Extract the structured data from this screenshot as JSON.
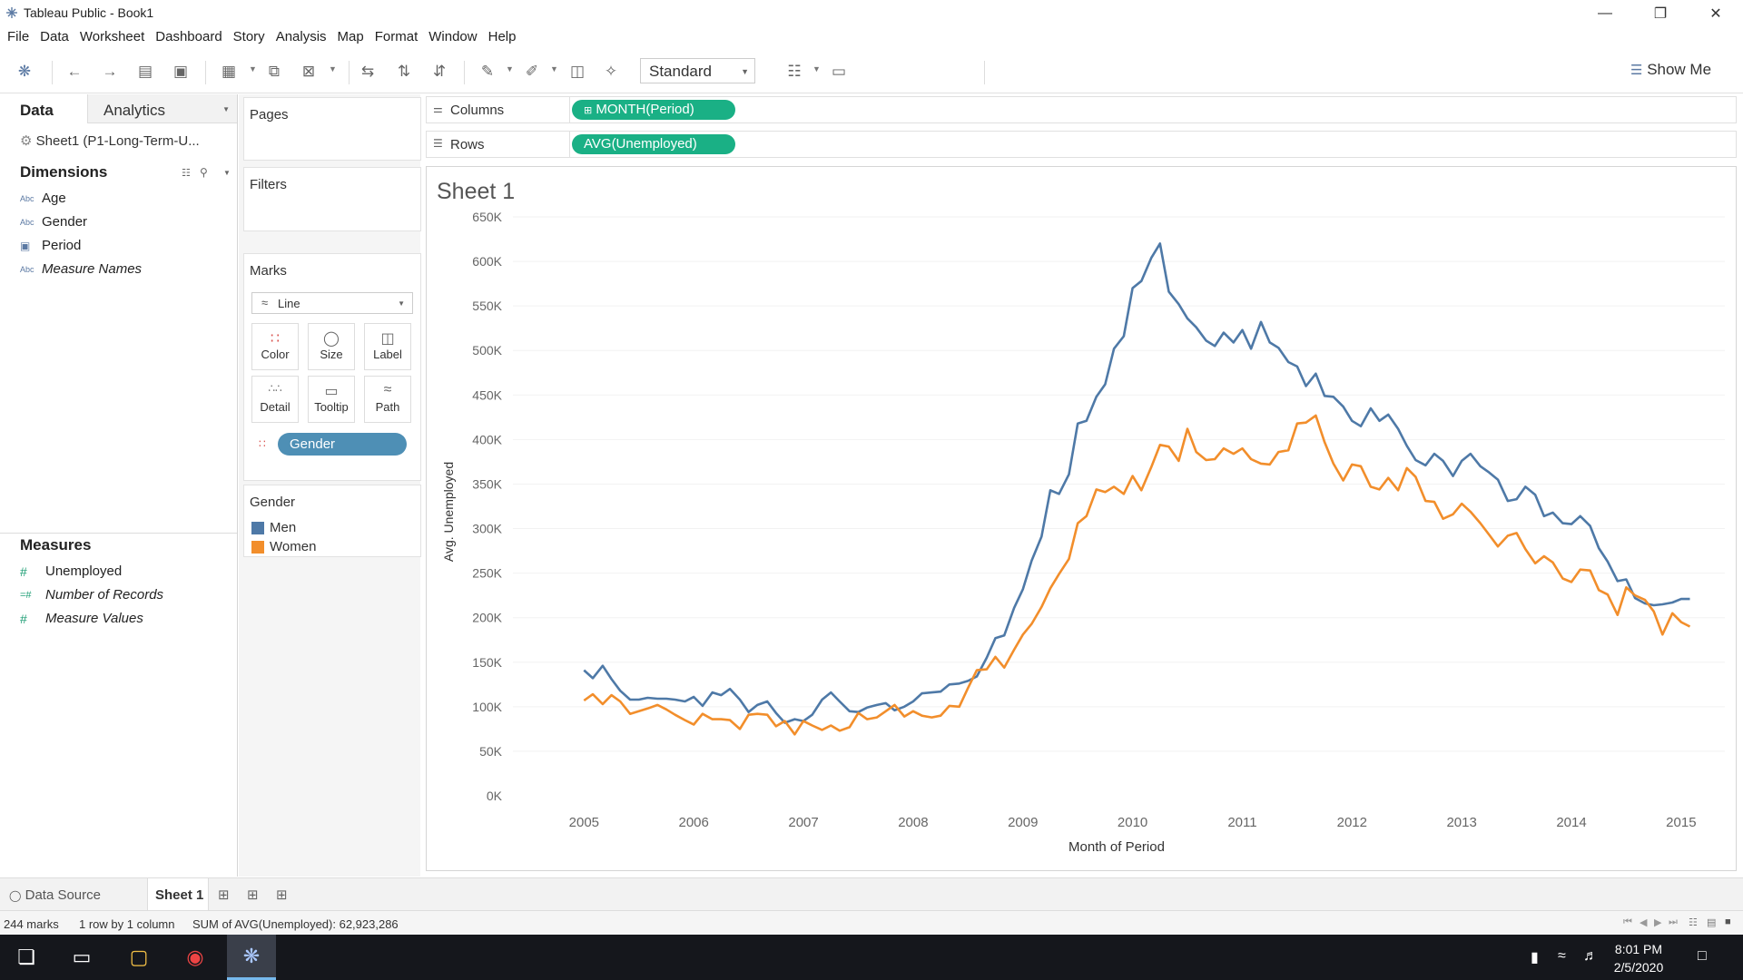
{
  "window": {
    "title": "Tableau Public - Book1"
  },
  "menu": [
    "File",
    "Data",
    "Worksheet",
    "Dashboard",
    "Story",
    "Analysis",
    "Map",
    "Format",
    "Window",
    "Help"
  ],
  "toolbar": {
    "fit_select": "Standard",
    "show_me": "Show Me"
  },
  "data_pane": {
    "tab_data": "Data",
    "tab_analytics": "Analytics",
    "datasource": "Sheet1 (P1-Long-Term-U...",
    "dimensions_title": "Dimensions",
    "dimensions": [
      {
        "icon": "Abc",
        "name": "Age"
      },
      {
        "icon": "Abc",
        "name": "Gender"
      },
      {
        "icon": "▣",
        "name": "Period"
      },
      {
        "icon": "Abc",
        "name": "Measure Names"
      }
    ],
    "measures_title": "Measures",
    "measures": [
      {
        "icon": "#",
        "name": "Unemployed"
      },
      {
        "icon": "=#",
        "name": "Number of Records"
      },
      {
        "icon": "#",
        "name": "Measure Values"
      }
    ]
  },
  "cards": {
    "pages": "Pages",
    "filters": "Filters",
    "marks": "Marks",
    "mark_type": "Line",
    "mark_buttons": [
      "Color",
      "Size",
      "Label",
      "Detail",
      "Tooltip",
      "Path"
    ],
    "gender_pill": "Gender",
    "legend_title": "Gender",
    "legend": [
      {
        "name": "Men",
        "color": "#4e79a7"
      },
      {
        "name": "Women",
        "color": "#f28e2b"
      }
    ]
  },
  "shelves": {
    "columns_label": "Columns",
    "columns_pill": "MONTH(Period)",
    "rows_label": "Rows",
    "rows_pill": "AVG(Unemployed)"
  },
  "sheet_title": "Sheet 1",
  "chart_data": {
    "type": "line",
    "xlabel": "Month of Period",
    "ylabel": "Avg. Unemployed",
    "ylim": [
      0,
      650000
    ],
    "yticks": [
      0,
      50000,
      100000,
      150000,
      200000,
      250000,
      300000,
      350000,
      400000,
      450000,
      500000,
      550000,
      600000,
      650000
    ],
    "ytick_labels": [
      "0K",
      "50K",
      "100K",
      "150K",
      "200K",
      "250K",
      "300K",
      "350K",
      "400K",
      "450K",
      "500K",
      "550K",
      "600K",
      "650K"
    ],
    "xticks": [
      2005,
      2006,
      2007,
      2008,
      2009,
      2010,
      2011,
      2012,
      2013,
      2014,
      2015
    ],
    "xlim": [
      2004.6,
      2015.15
    ],
    "series": [
      {
        "name": "Men",
        "color": "#4e79a7",
        "points": [
          [
            2005.0,
            141000
          ],
          [
            2005.08,
            132000
          ],
          [
            2005.17,
            146000
          ],
          [
            2005.25,
            131000
          ],
          [
            2005.33,
            118000
          ],
          [
            2005.42,
            108000
          ],
          [
            2005.5,
            108000
          ],
          [
            2005.58,
            110000
          ],
          [
            2005.67,
            109000
          ],
          [
            2005.75,
            109000
          ],
          [
            2005.83,
            108000
          ],
          [
            2005.92,
            106000
          ],
          [
            2006.0,
            111000
          ],
          [
            2006.08,
            101000
          ],
          [
            2006.17,
            116000
          ],
          [
            2006.25,
            113000
          ],
          [
            2006.33,
            120000
          ],
          [
            2006.42,
            108000
          ],
          [
            2006.5,
            94000
          ],
          [
            2006.58,
            102000
          ],
          [
            2006.67,
            106000
          ],
          [
            2006.75,
            93000
          ],
          [
            2006.83,
            82000
          ],
          [
            2006.92,
            86000
          ],
          [
            2007.0,
            84000
          ],
          [
            2007.08,
            91000
          ],
          [
            2007.17,
            108000
          ],
          [
            2007.25,
            116000
          ],
          [
            2007.33,
            106000
          ],
          [
            2007.42,
            95000
          ],
          [
            2007.5,
            94000
          ],
          [
            2007.58,
            99000
          ],
          [
            2007.67,
            102000
          ],
          [
            2007.75,
            104000
          ],
          [
            2007.83,
            96000
          ],
          [
            2007.92,
            100000
          ],
          [
            2008.0,
            106000
          ],
          [
            2008.08,
            115000
          ],
          [
            2008.17,
            116000
          ],
          [
            2008.25,
            117000
          ],
          [
            2008.33,
            125000
          ],
          [
            2008.42,
            126000
          ],
          [
            2008.5,
            129000
          ],
          [
            2008.58,
            134000
          ],
          [
            2008.67,
            155000
          ],
          [
            2008.75,
            177000
          ],
          [
            2008.83,
            180000
          ],
          [
            2008.92,
            211000
          ],
          [
            2009.0,
            232000
          ],
          [
            2009.08,
            264000
          ],
          [
            2009.17,
            291000
          ],
          [
            2009.25,
            343000
          ],
          [
            2009.33,
            339000
          ],
          [
            2009.42,
            361000
          ],
          [
            2009.5,
            418000
          ],
          [
            2009.58,
            421000
          ],
          [
            2009.67,
            448000
          ],
          [
            2009.75,
            462000
          ],
          [
            2009.83,
            502000
          ],
          [
            2009.92,
            516000
          ],
          [
            2010.0,
            570000
          ],
          [
            2010.08,
            578000
          ],
          [
            2010.17,
            604000
          ],
          [
            2010.25,
            620000
          ],
          [
            2010.33,
            566000
          ],
          [
            2010.42,
            552000
          ],
          [
            2010.5,
            536000
          ],
          [
            2010.58,
            526000
          ],
          [
            2010.67,
            511000
          ],
          [
            2010.75,
            505000
          ],
          [
            2010.83,
            520000
          ],
          [
            2010.92,
            509000
          ],
          [
            2011.0,
            523000
          ],
          [
            2011.08,
            502000
          ],
          [
            2011.17,
            532000
          ],
          [
            2011.25,
            509000
          ],
          [
            2011.33,
            503000
          ],
          [
            2011.42,
            487000
          ],
          [
            2011.5,
            482000
          ],
          [
            2011.58,
            460000
          ],
          [
            2011.67,
            474000
          ],
          [
            2011.75,
            449000
          ],
          [
            2011.83,
            448000
          ],
          [
            2011.92,
            437000
          ],
          [
            2012.0,
            421000
          ],
          [
            2012.08,
            415000
          ],
          [
            2012.17,
            435000
          ],
          [
            2012.25,
            421000
          ],
          [
            2012.33,
            428000
          ],
          [
            2012.42,
            412000
          ],
          [
            2012.5,
            393000
          ],
          [
            2012.58,
            377000
          ],
          [
            2012.67,
            371000
          ],
          [
            2012.75,
            384000
          ],
          [
            2012.83,
            376000
          ],
          [
            2012.92,
            359000
          ],
          [
            2013.0,
            376000
          ],
          [
            2013.08,
            384000
          ],
          [
            2013.17,
            370000
          ],
          [
            2013.25,
            363000
          ],
          [
            2013.33,
            355000
          ],
          [
            2013.42,
            331000
          ],
          [
            2013.5,
            333000
          ],
          [
            2013.58,
            347000
          ],
          [
            2013.67,
            338000
          ],
          [
            2013.75,
            314000
          ],
          [
            2013.83,
            318000
          ],
          [
            2013.92,
            306000
          ],
          [
            2014.0,
            305000
          ],
          [
            2014.08,
            314000
          ],
          [
            2014.17,
            303000
          ],
          [
            2014.25,
            278000
          ],
          [
            2014.33,
            263000
          ],
          [
            2014.42,
            241000
          ],
          [
            2014.5,
            243000
          ],
          [
            2014.58,
            222000
          ],
          [
            2014.67,
            216000
          ],
          [
            2014.75,
            214000
          ],
          [
            2014.83,
            215000
          ],
          [
            2014.92,
            217000
          ],
          [
            2015.0,
            221000
          ],
          [
            2015.08,
            221000
          ]
        ]
      },
      {
        "name": "Women",
        "color": "#f28e2b",
        "points": [
          [
            2005.0,
            107000
          ],
          [
            2005.08,
            114000
          ],
          [
            2005.17,
            103000
          ],
          [
            2005.25,
            113000
          ],
          [
            2005.33,
            106000
          ],
          [
            2005.42,
            92000
          ],
          [
            2005.5,
            95000
          ],
          [
            2005.58,
            98000
          ],
          [
            2005.67,
            102000
          ],
          [
            2005.75,
            97000
          ],
          [
            2005.83,
            91000
          ],
          [
            2005.92,
            85000
          ],
          [
            2006.0,
            80000
          ],
          [
            2006.08,
            92000
          ],
          [
            2006.17,
            86000
          ],
          [
            2006.25,
            86000
          ],
          [
            2006.33,
            85000
          ],
          [
            2006.42,
            75000
          ],
          [
            2006.5,
            91000
          ],
          [
            2006.58,
            92000
          ],
          [
            2006.67,
            91000
          ],
          [
            2006.75,
            78000
          ],
          [
            2006.83,
            84000
          ],
          [
            2006.92,
            69000
          ],
          [
            2007.0,
            84000
          ],
          [
            2007.08,
            79000
          ],
          [
            2007.17,
            74000
          ],
          [
            2007.25,
            79000
          ],
          [
            2007.33,
            73000
          ],
          [
            2007.42,
            77000
          ],
          [
            2007.5,
            93000
          ],
          [
            2007.58,
            86000
          ],
          [
            2007.67,
            88000
          ],
          [
            2007.75,
            95000
          ],
          [
            2007.83,
            102000
          ],
          [
            2007.92,
            89000
          ],
          [
            2008.0,
            95000
          ],
          [
            2008.08,
            90000
          ],
          [
            2008.17,
            88000
          ],
          [
            2008.25,
            90000
          ],
          [
            2008.33,
            101000
          ],
          [
            2008.42,
            100000
          ],
          [
            2008.5,
            121000
          ],
          [
            2008.58,
            141000
          ],
          [
            2008.67,
            142000
          ],
          [
            2008.75,
            156000
          ],
          [
            2008.83,
            144000
          ],
          [
            2008.92,
            164000
          ],
          [
            2009.0,
            181000
          ],
          [
            2009.08,
            193000
          ],
          [
            2009.17,
            212000
          ],
          [
            2009.25,
            233000
          ],
          [
            2009.33,
            249000
          ],
          [
            2009.42,
            266000
          ],
          [
            2009.5,
            306000
          ],
          [
            2009.58,
            314000
          ],
          [
            2009.67,
            344000
          ],
          [
            2009.75,
            341000
          ],
          [
            2009.83,
            347000
          ],
          [
            2009.92,
            339000
          ],
          [
            2010.0,
            359000
          ],
          [
            2010.08,
            343000
          ],
          [
            2010.17,
            369000
          ],
          [
            2010.25,
            394000
          ],
          [
            2010.33,
            392000
          ],
          [
            2010.42,
            376000
          ],
          [
            2010.5,
            412000
          ],
          [
            2010.58,
            386000
          ],
          [
            2010.67,
            377000
          ],
          [
            2010.75,
            378000
          ],
          [
            2010.83,
            390000
          ],
          [
            2010.92,
            384000
          ],
          [
            2011.0,
            390000
          ],
          [
            2011.08,
            378000
          ],
          [
            2011.17,
            373000
          ],
          [
            2011.25,
            372000
          ],
          [
            2011.33,
            386000
          ],
          [
            2011.42,
            388000
          ],
          [
            2011.5,
            418000
          ],
          [
            2011.58,
            419000
          ],
          [
            2011.67,
            427000
          ],
          [
            2011.75,
            397000
          ],
          [
            2011.83,
            373000
          ],
          [
            2011.92,
            354000
          ],
          [
            2012.0,
            372000
          ],
          [
            2012.08,
            370000
          ],
          [
            2012.17,
            347000
          ],
          [
            2012.25,
            344000
          ],
          [
            2012.33,
            357000
          ],
          [
            2012.42,
            343000
          ],
          [
            2012.5,
            368000
          ],
          [
            2012.58,
            358000
          ],
          [
            2012.67,
            331000
          ],
          [
            2012.75,
            330000
          ],
          [
            2012.83,
            311000
          ],
          [
            2012.92,
            316000
          ],
          [
            2013.0,
            328000
          ],
          [
            2013.08,
            319000
          ],
          [
            2013.17,
            306000
          ],
          [
            2013.25,
            293000
          ],
          [
            2013.33,
            280000
          ],
          [
            2013.42,
            292000
          ],
          [
            2013.5,
            295000
          ],
          [
            2013.58,
            277000
          ],
          [
            2013.67,
            261000
          ],
          [
            2013.75,
            269000
          ],
          [
            2013.83,
            262000
          ],
          [
            2013.92,
            244000
          ],
          [
            2014.0,
            240000
          ],
          [
            2014.08,
            254000
          ],
          [
            2014.17,
            253000
          ],
          [
            2014.25,
            231000
          ],
          [
            2014.33,
            226000
          ],
          [
            2014.42,
            203000
          ],
          [
            2014.5,
            234000
          ],
          [
            2014.58,
            225000
          ],
          [
            2014.67,
            220000
          ],
          [
            2014.75,
            207000
          ],
          [
            2014.83,
            181000
          ],
          [
            2014.92,
            205000
          ],
          [
            2015.0,
            195000
          ],
          [
            2015.08,
            190000
          ]
        ]
      }
    ]
  },
  "bottom_tabs": {
    "data_source": "Data Source",
    "sheet": "Sheet 1"
  },
  "status": {
    "marks": "244 marks",
    "layout": "1 row by 1 column",
    "sum": "SUM of AVG(Unemployed): 62,923,286"
  },
  "taskbar": {
    "time": "8:01 PM",
    "date": "2/5/2020"
  }
}
